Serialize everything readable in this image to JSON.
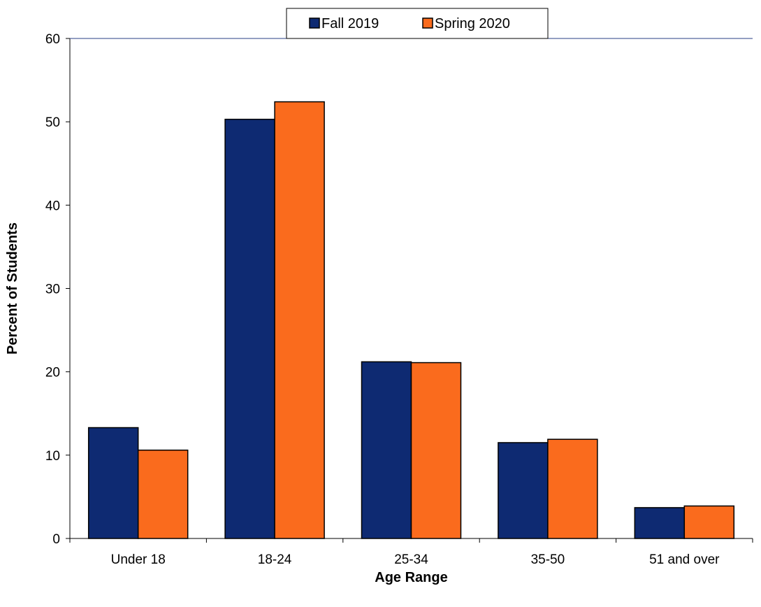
{
  "chart_data": {
    "type": "bar",
    "title": "",
    "xlabel": "Age Range",
    "ylabel": "Percent of Students",
    "categories": [
      "Under 18",
      "18-24",
      "25-34",
      "35-50",
      "51 and over"
    ],
    "series": [
      {
        "name": "Fall 2019",
        "color": "#0e2a72",
        "values": [
          13.3,
          50.3,
          21.2,
          11.5,
          3.7
        ]
      },
      {
        "name": "Spring 2020",
        "color": "#fa6b1d",
        "values": [
          10.6,
          52.4,
          21.1,
          11.9,
          3.9
        ]
      }
    ],
    "ylim": [
      0,
      60
    ],
    "yticks": [
      "0",
      "10",
      "20",
      "30",
      "40",
      "50",
      "60"
    ],
    "grid": false,
    "legend_position": "top-center"
  }
}
